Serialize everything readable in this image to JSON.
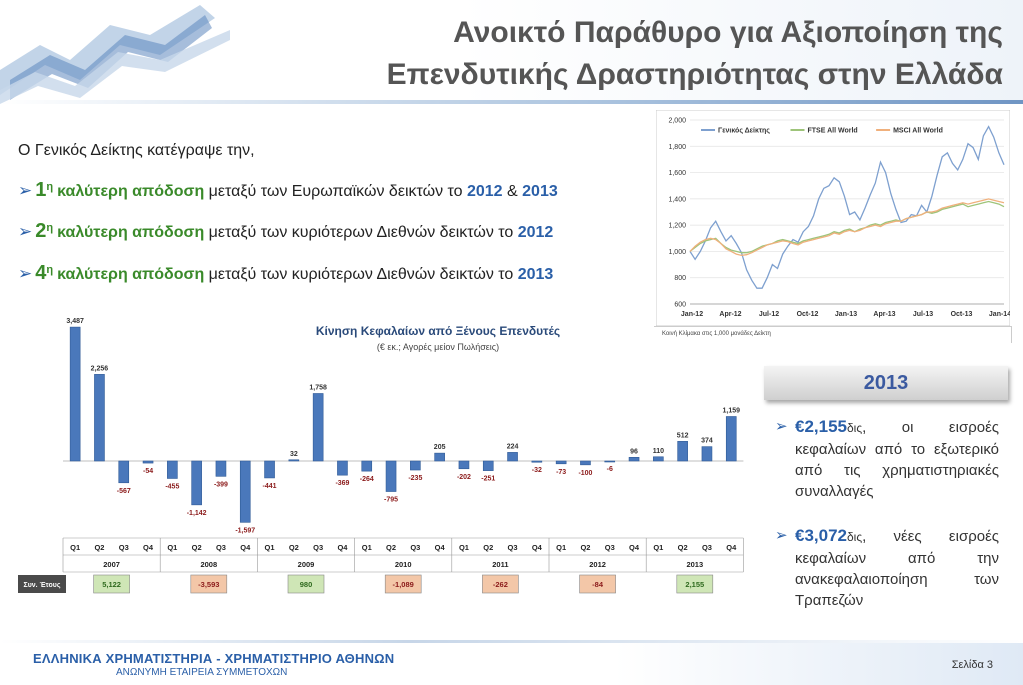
{
  "title": {
    "line1": "Ανοικτό Παράθυρο για Αξιοποίηση της",
    "line2": "Επενδυτικής Δραστηριότητας στην Ελλάδα"
  },
  "intro": "Ο Γενικός Δείκτης κατέγραψε την,",
  "bullets": [
    {
      "rank": "1",
      "sup": "η",
      "keyword": "καλύτερη απόδοση",
      "text": "μεταξύ των Ευρωπαϊκών δεικτών το",
      "year1": "2012",
      "amp": "&",
      "year2": "2013"
    },
    {
      "rank": "2",
      "sup": "η",
      "keyword": "καλύτερη απόδοση",
      "text": "μεταξύ των κυριότερων Διεθνών δεικτών το",
      "year1": "2012"
    },
    {
      "rank": "4",
      "sup": "η",
      "keyword": "καλύτερη απόδοση",
      "text": "μεταξύ των κυριότερων Διεθνών δεικτών το",
      "year1": "2013"
    }
  ],
  "side_panel": {
    "year": "2013",
    "items": [
      {
        "amount": "€2,155",
        "unit": "δις",
        "text": ", οι εισροές κεφαλαίων από το εξωτερικό από τις χρηματιστηριακές συναλλαγές"
      },
      {
        "amount": "€3,072",
        "unit": "δις",
        "text": ", νέες εισροές κεφαλαίων από την ανακεφαλαιοποίηση των Τραπεζών"
      }
    ]
  },
  "footer": {
    "title": "ΕΛΛΗΝΙΚΑ ΧΡΗΜΑΤΙΣΤΗΡΙΑ - ΧΡΗΜΑΤΙΣΤΗΡΙΟ ΑΘΗΝΩΝ",
    "subtitle": "ΑΝΩΝΥΜΗ ΕΤΑΙΡΕΙΑ ΣΥΜΜΕΤΟΧΩΝ",
    "page": "Σελίδα 3"
  },
  "colors": {
    "accent_blue": "#2a5fa8",
    "accent_green": "#3a8a2a",
    "bar": "#4a78bb",
    "neg_label": "#8b1a1a"
  },
  "chart_data": [
    {
      "type": "line",
      "note": "Κοινή Κλίμακα στις 1,000 μονάδες Δείκτη",
      "ylim": [
        600,
        2000
      ],
      "y_ticks": [
        "600",
        "800",
        "1,000",
        "1,200",
        "1,400",
        "1,600",
        "1,800",
        "2,000"
      ],
      "x_ticks": [
        "Jan-12",
        "Apr-12",
        "Jul-12",
        "Oct-12",
        "Jan-13",
        "Apr-13",
        "Jul-13",
        "Oct-13",
        "Jan-14"
      ],
      "legend_position": "top",
      "series": [
        {
          "name": "Γενικός Δείκτης",
          "color": "#7ea0cf",
          "values": [
            1000,
            940,
            1000,
            1080,
            1180,
            1230,
            1150,
            1080,
            1120,
            1060,
            990,
            860,
            780,
            720,
            720,
            800,
            900,
            870,
            980,
            1040,
            1090,
            1070,
            1150,
            1190,
            1270,
            1400,
            1480,
            1500,
            1560,
            1530,
            1420,
            1280,
            1300,
            1240,
            1330,
            1430,
            1520,
            1680,
            1600,
            1440,
            1320,
            1220,
            1230,
            1280,
            1270,
            1350,
            1300,
            1420,
            1580,
            1720,
            1750,
            1670,
            1620,
            1700,
            1820,
            1790,
            1700,
            1880,
            1950,
            1870,
            1750,
            1660
          ]
        },
        {
          "name": "FTSE All World",
          "color": "#9ec47a",
          "values": [
            1000,
            1030,
            1060,
            1080,
            1090,
            1100,
            1060,
            1030,
            1010,
            1000,
            990,
            990,
            1000,
            1020,
            1040,
            1050,
            1060,
            1080,
            1090,
            1080,
            1070,
            1060,
            1080,
            1090,
            1100,
            1110,
            1120,
            1130,
            1150,
            1140,
            1160,
            1170,
            1150,
            1170,
            1180,
            1200,
            1210,
            1200,
            1220,
            1230,
            1240,
            1230,
            1250,
            1260,
            1270,
            1280,
            1300,
            1290,
            1300,
            1320,
            1330,
            1340,
            1350,
            1360,
            1340,
            1350,
            1360,
            1370,
            1380,
            1370,
            1360,
            1340
          ]
        },
        {
          "name": "MSCI All World",
          "color": "#f0b07c",
          "values": [
            1000,
            1040,
            1070,
            1090,
            1100,
            1090,
            1060,
            1020,
            1000,
            980,
            970,
            975,
            990,
            1010,
            1030,
            1050,
            1060,
            1070,
            1080,
            1075,
            1060,
            1050,
            1070,
            1080,
            1090,
            1100,
            1110,
            1120,
            1140,
            1130,
            1150,
            1160,
            1150,
            1160,
            1180,
            1190,
            1200,
            1190,
            1210,
            1220,
            1230,
            1230,
            1250,
            1260,
            1270,
            1280,
            1300,
            1300,
            1310,
            1330,
            1340,
            1350,
            1360,
            1370,
            1360,
            1370,
            1380,
            1390,
            1400,
            1390,
            1380,
            1370
          ]
        }
      ]
    },
    {
      "type": "bar",
      "title": "Κίνηση Κεφαλαίων από Ξένους Επενδυτές",
      "subtitle": "(€ εκ.; Αγορές μείον Πωλήσεις)",
      "categories": [
        "Q1",
        "Q2",
        "Q3",
        "Q4",
        "Q1",
        "Q2",
        "Q3",
        "Q4",
        "Q1",
        "Q2",
        "Q3",
        "Q4",
        "Q1",
        "Q2",
        "Q3",
        "Q4",
        "Q1",
        "Q2",
        "Q3",
        "Q4",
        "Q1",
        "Q2",
        "Q3",
        "Q4",
        "Q1",
        "Q2",
        "Q3",
        "Q4"
      ],
      "values": [
        3487,
        2256,
        -567,
        -54,
        -455,
        -1142,
        -399,
        -1597,
        -441,
        32,
        1758,
        -369,
        -264,
        -795,
        -235,
        205,
        -202,
        -251,
        224,
        -32,
        -73,
        -100,
        -6,
        96,
        110,
        512,
        374,
        1159
      ],
      "value_labels": [
        "3,487",
        "2,256",
        "-567",
        "-54",
        "-455",
        "-1,142",
        "-399",
        "-1,597",
        "-441",
        "32",
        "1,758",
        "-369",
        "-264",
        "-795",
        "-235",
        "205",
        "-202",
        "-251",
        "224",
        "-32",
        "-73",
        "-100",
        "-6",
        "96",
        "110",
        "512",
        "374",
        "1,159"
      ],
      "years": [
        "2007",
        "2008",
        "2009",
        "2010",
        "2011",
        "2012",
        "2013"
      ],
      "annual_label": "Συν. Έτους",
      "annual_totals": [
        "5,122",
        "-3,593",
        "980",
        "-1,089",
        "-262",
        "-84",
        "2,155"
      ],
      "ylim": [
        -1800,
        3600
      ]
    }
  ]
}
